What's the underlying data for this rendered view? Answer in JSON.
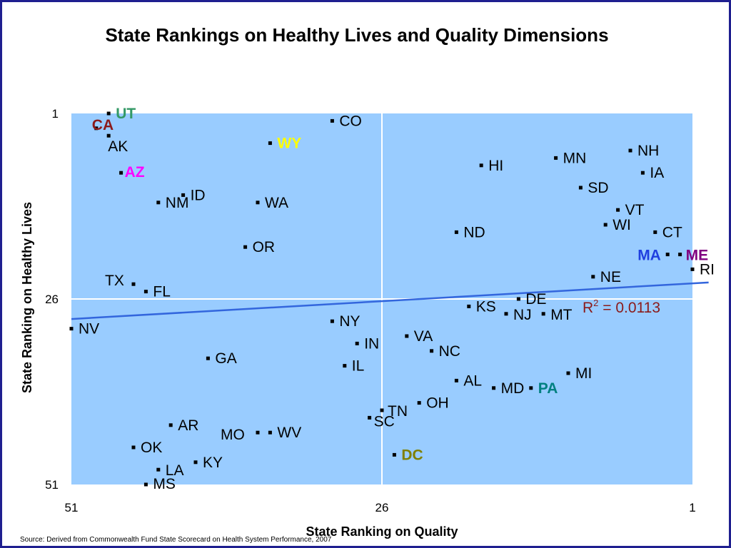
{
  "title": "State Rankings on Healthy Lives and Quality Dimensions",
  "source": "Source: Derived from Commonwealth Fund State Scorecard on Health System Performance, 2007",
  "chart_data": {
    "type": "scatter",
    "xlabel": "State Ranking on Quality",
    "ylabel": "State Ranking on Healthy Lives",
    "xlim": [
      51,
      1
    ],
    "ylim": [
      51,
      1
    ],
    "x_ticks": [
      "51",
      "26",
      "1"
    ],
    "y_ticks": [
      "1",
      "26",
      "51"
    ],
    "plot_background": "#99ccff",
    "reference_lines": {
      "x": 26,
      "y": 26,
      "color": "#ffffff"
    },
    "trendline": {
      "color": "#3366dd",
      "y_at_x51": 28.7,
      "y_at_x1": 23.9
    },
    "r_squared": {
      "label": "R",
      "sup": "2",
      "value": " = 0.0113",
      "color": "#8b1a1a"
    },
    "points": [
      {
        "label": "UT",
        "x": 48,
        "y": 1,
        "color": "#339966",
        "bold": true
      },
      {
        "label": "CA",
        "x": 49,
        "y": 3,
        "color": "#8b1a1a",
        "bold": true
      },
      {
        "label": "AK",
        "x": 48,
        "y": 4,
        "color": "#000000",
        "bold": false
      },
      {
        "label": "AZ",
        "x": 47,
        "y": 9,
        "color": "#ff00ff",
        "bold": true
      },
      {
        "label": "CO",
        "x": 30,
        "y": 2,
        "color": "#000000",
        "bold": false
      },
      {
        "label": "WY",
        "x": 35,
        "y": 5,
        "color": "#ffff00",
        "bold": true
      },
      {
        "label": "ID",
        "x": 42,
        "y": 12,
        "color": "#000000",
        "bold": false
      },
      {
        "label": "NM",
        "x": 44,
        "y": 13,
        "color": "#000000",
        "bold": false
      },
      {
        "label": "WA",
        "x": 36,
        "y": 13,
        "color": "#000000",
        "bold": false
      },
      {
        "label": "OR",
        "x": 37,
        "y": 19,
        "color": "#000000",
        "bold": false
      },
      {
        "label": "TX",
        "x": 46,
        "y": 24,
        "color": "#000000",
        "bold": false
      },
      {
        "label": "FL",
        "x": 45,
        "y": 25,
        "color": "#000000",
        "bold": false
      },
      {
        "label": "NV",
        "x": 51,
        "y": 30,
        "color": "#000000",
        "bold": false
      },
      {
        "label": "HI",
        "x": 18,
        "y": 8,
        "color": "#000000",
        "bold": false
      },
      {
        "label": "MN",
        "x": 12,
        "y": 7,
        "color": "#000000",
        "bold": false
      },
      {
        "label": "NH",
        "x": 6,
        "y": 6,
        "color": "#000000",
        "bold": false
      },
      {
        "label": "IA",
        "x": 5,
        "y": 9,
        "color": "#000000",
        "bold": false
      },
      {
        "label": "SD",
        "x": 10,
        "y": 11,
        "color": "#000000",
        "bold": false
      },
      {
        "label": "VT",
        "x": 7,
        "y": 14,
        "color": "#000000",
        "bold": false
      },
      {
        "label": "WI",
        "x": 8,
        "y": 16,
        "color": "#000000",
        "bold": false
      },
      {
        "label": "CT",
        "x": 4,
        "y": 17,
        "color": "#000000",
        "bold": false
      },
      {
        "label": "ND",
        "x": 20,
        "y": 17,
        "color": "#000000",
        "bold": false
      },
      {
        "label": "MA",
        "x": 3,
        "y": 20,
        "color": "#1f3fdf",
        "bold": true
      },
      {
        "label": "ME",
        "x": 2,
        "y": 20,
        "color": "#800080",
        "bold": true
      },
      {
        "label": "RI",
        "x": 1,
        "y": 22,
        "color": "#000000",
        "bold": false
      },
      {
        "label": "NE",
        "x": 9,
        "y": 23,
        "color": "#000000",
        "bold": false
      },
      {
        "label": "DE",
        "x": 15,
        "y": 26,
        "color": "#000000",
        "bold": false
      },
      {
        "label": "KS",
        "x": 19,
        "y": 27,
        "color": "#000000",
        "bold": false
      },
      {
        "label": "NJ",
        "x": 16,
        "y": 28,
        "color": "#000000",
        "bold": false
      },
      {
        "label": "MT",
        "x": 13,
        "y": 28,
        "color": "#000000",
        "bold": false
      },
      {
        "label": "NY",
        "x": 30,
        "y": 29,
        "color": "#000000",
        "bold": false
      },
      {
        "label": "IN",
        "x": 28,
        "y": 32,
        "color": "#000000",
        "bold": false
      },
      {
        "label": "VA",
        "x": 24,
        "y": 31,
        "color": "#000000",
        "bold": false
      },
      {
        "label": "NC",
        "x": 22,
        "y": 33,
        "color": "#000000",
        "bold": false
      },
      {
        "label": "IL",
        "x": 29,
        "y": 35,
        "color": "#000000",
        "bold": false
      },
      {
        "label": "GA",
        "x": 40,
        "y": 34,
        "color": "#000000",
        "bold": false
      },
      {
        "label": "MI",
        "x": 11,
        "y": 36,
        "color": "#000000",
        "bold": false
      },
      {
        "label": "AL",
        "x": 20,
        "y": 37,
        "color": "#000000",
        "bold": false
      },
      {
        "label": "MD",
        "x": 17,
        "y": 38,
        "color": "#000000",
        "bold": false
      },
      {
        "label": "PA",
        "x": 14,
        "y": 38,
        "color": "#008080",
        "bold": true
      },
      {
        "label": "OH",
        "x": 23,
        "y": 40,
        "color": "#000000",
        "bold": false
      },
      {
        "label": "TN",
        "x": 26,
        "y": 41,
        "color": "#000000",
        "bold": false
      },
      {
        "label": "SC",
        "x": 27,
        "y": 42,
        "color": "#000000",
        "bold": false
      },
      {
        "label": "AR",
        "x": 43,
        "y": 43,
        "color": "#000000",
        "bold": false
      },
      {
        "label": "MO",
        "x": 36,
        "y": 44,
        "color": "#000000",
        "bold": false
      },
      {
        "label": "WV",
        "x": 35,
        "y": 44,
        "color": "#000000",
        "bold": false
      },
      {
        "label": "OK",
        "x": 46,
        "y": 46,
        "color": "#000000",
        "bold": false
      },
      {
        "label": "DC",
        "x": 25,
        "y": 47,
        "color": "#808000",
        "bold": true
      },
      {
        "label": "KY",
        "x": 41,
        "y": 48,
        "color": "#000000",
        "bold": false
      },
      {
        "label": "LA",
        "x": 44,
        "y": 49,
        "color": "#000000",
        "bold": false
      },
      {
        "label": "MS",
        "x": 45,
        "y": 51,
        "color": "#000000",
        "bold": false
      }
    ]
  }
}
